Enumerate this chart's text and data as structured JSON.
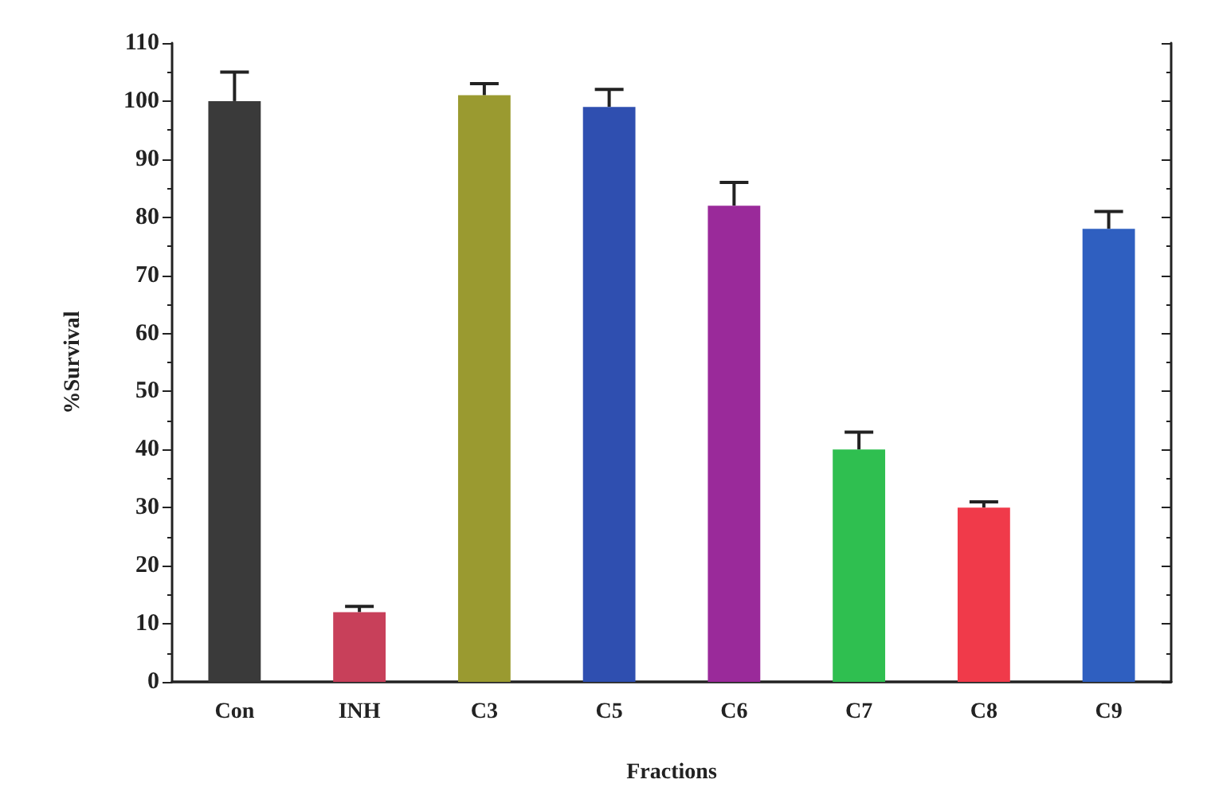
{
  "chart_data": {
    "type": "bar",
    "xlabel": "Fractions",
    "ylabel": "%Survival",
    "categories": [
      "Con",
      "INH",
      "C3",
      "C5",
      "C6",
      "C7",
      "C8",
      "C9"
    ],
    "values": [
      100,
      12,
      101,
      99,
      82,
      40,
      30,
      78
    ],
    "colors": [
      "#3a3a3a",
      "#c8405a",
      "#9a9a30",
      "#2f4fb0",
      "#9a2a9a",
      "#2fbf50",
      "#f03a4a",
      "#2f5fc0"
    ],
    "errors": [
      [
        100,
        105
      ],
      [
        12,
        13
      ],
      [
        101,
        103
      ],
      [
        99,
        102
      ],
      [
        82,
        86
      ],
      [
        40,
        43
      ],
      [
        30,
        31
      ],
      [
        78,
        81
      ]
    ],
    "ylim": [
      0,
      110
    ],
    "yticks": [
      0,
      10,
      20,
      30,
      40,
      50,
      60,
      70,
      80,
      90,
      100,
      110
    ],
    "grid": false
  }
}
